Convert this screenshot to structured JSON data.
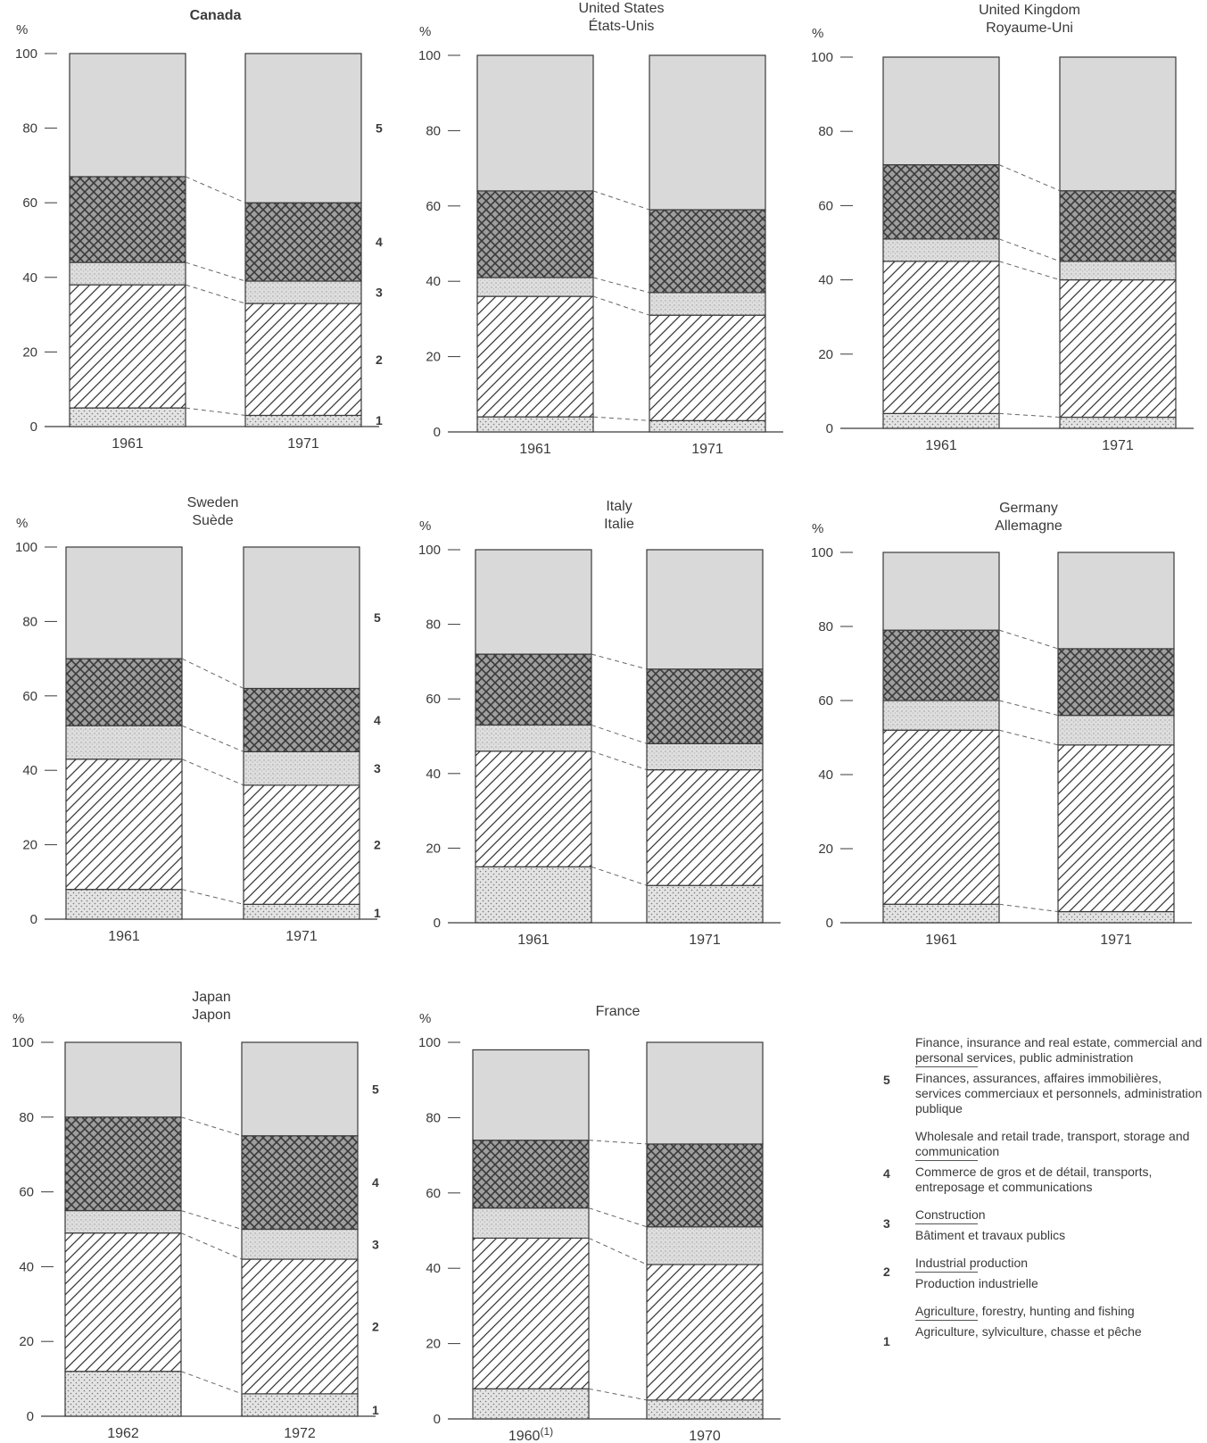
{
  "chart_data": [
    {
      "type": "bar",
      "title": "Canada",
      "title_bold": true,
      "ylabel": "%",
      "ylim": [
        0,
        100
      ],
      "categories": [
        "1961",
        "1971"
      ],
      "show_category_labels": true,
      "series": [
        {
          "name": "1",
          "values": [
            5,
            3
          ]
        },
        {
          "name": "2",
          "values": [
            33,
            30
          ]
        },
        {
          "name": "3",
          "values": [
            6,
            6
          ]
        },
        {
          "name": "4",
          "values": [
            23,
            21
          ]
        },
        {
          "name": "5",
          "values": [
            33,
            40
          ]
        }
      ]
    },
    {
      "type": "bar",
      "title": "United States",
      "subtitle": "États-Unis",
      "ylabel": "%",
      "ylim": [
        0,
        100
      ],
      "categories": [
        "1961",
        "1971"
      ],
      "series": [
        {
          "name": "1",
          "values": [
            4,
            3
          ]
        },
        {
          "name": "2",
          "values": [
            32,
            28
          ]
        },
        {
          "name": "3",
          "values": [
            5,
            6
          ]
        },
        {
          "name": "4",
          "values": [
            23,
            22
          ]
        },
        {
          "name": "5",
          "values": [
            36,
            41
          ]
        }
      ]
    },
    {
      "type": "bar",
      "title": "United Kingdom",
      "subtitle": "Royaume-Uni",
      "ylabel": "%",
      "ylim": [
        0,
        100
      ],
      "categories": [
        "1961",
        "1971"
      ],
      "series": [
        {
          "name": "1",
          "values": [
            4,
            3
          ]
        },
        {
          "name": "2",
          "values": [
            41,
            37
          ]
        },
        {
          "name": "3",
          "values": [
            6,
            5
          ]
        },
        {
          "name": "4",
          "values": [
            20,
            19
          ]
        },
        {
          "name": "5",
          "values": [
            29,
            36
          ]
        }
      ]
    },
    {
      "type": "bar",
      "title": "Sweden",
      "subtitle": "Suède",
      "ylabel": "%",
      "ylim": [
        0,
        100
      ],
      "categories": [
        "1961",
        "1971"
      ],
      "series": [
        {
          "name": "1",
          "values": [
            8,
            4
          ]
        },
        {
          "name": "2",
          "values": [
            35,
            32
          ]
        },
        {
          "name": "3",
          "values": [
            9,
            9
          ]
        },
        {
          "name": "4",
          "values": [
            18,
            17
          ]
        },
        {
          "name": "5",
          "values": [
            30,
            38
          ]
        }
      ]
    },
    {
      "type": "bar",
      "title": "Italy",
      "subtitle": "Italie",
      "ylabel": "%",
      "ylim": [
        0,
        100
      ],
      "categories": [
        "1961",
        "1971"
      ],
      "series": [
        {
          "name": "1",
          "values": [
            15,
            10
          ]
        },
        {
          "name": "2",
          "values": [
            31,
            31
          ]
        },
        {
          "name": "3",
          "values": [
            7,
            7
          ]
        },
        {
          "name": "4",
          "values": [
            19,
            20
          ]
        },
        {
          "name": "5",
          "values": [
            28,
            32
          ]
        }
      ]
    },
    {
      "type": "bar",
      "title": "Germany",
      "subtitle": "Allemagne",
      "ylabel": "%",
      "ylim": [
        0,
        100
      ],
      "categories": [
        "1961",
        "1971"
      ],
      "series": [
        {
          "name": "1",
          "values": [
            5,
            3
          ]
        },
        {
          "name": "2",
          "values": [
            47,
            45
          ]
        },
        {
          "name": "3",
          "values": [
            8,
            8
          ]
        },
        {
          "name": "4",
          "values": [
            19,
            18
          ]
        },
        {
          "name": "5",
          "values": [
            21,
            26
          ]
        }
      ]
    },
    {
      "type": "bar",
      "title": "Japan",
      "subtitle": "Japon",
      "ylabel": "%",
      "ylim": [
        0,
        100
      ],
      "categories": [
        "1962",
        "1972"
      ],
      "series": [
        {
          "name": "1",
          "values": [
            12,
            6
          ]
        },
        {
          "name": "2",
          "values": [
            37,
            36
          ]
        },
        {
          "name": "3",
          "values": [
            6,
            8
          ]
        },
        {
          "name": "4",
          "values": [
            25,
            25
          ]
        },
        {
          "name": "5",
          "values": [
            20,
            25
          ]
        }
      ]
    },
    {
      "type": "bar",
      "title": "France",
      "ylabel": "%",
      "ylim": [
        0,
        100
      ],
      "categories": [
        "1960",
        "1970"
      ],
      "category_notes": [
        "(1)",
        ""
      ],
      "series": [
        {
          "name": "1",
          "values": [
            8,
            5
          ]
        },
        {
          "name": "2",
          "values": [
            40,
            36
          ]
        },
        {
          "name": "3",
          "values": [
            8,
            10
          ]
        },
        {
          "name": "4",
          "values": [
            18,
            22
          ]
        },
        {
          "name": "5",
          "values": [
            24,
            27
          ]
        }
      ]
    }
  ],
  "panel_number_labels": [
    "1",
    "2",
    "3",
    "4",
    "5"
  ],
  "yticks": [
    "0",
    "20",
    "40",
    "60",
    "80",
    "100"
  ],
  "legend": [
    {
      "num": "5",
      "en": "Finance, insurance and real estate, commercial and personal services, public administration",
      "fr": "Finances, assurances, affaires immobilières, services commerciaux et personnels, administration publique"
    },
    {
      "num": "4",
      "en": "Wholesale and retail trade, transport, storage and communication",
      "fr": "Commerce de gros et de détail, transports, entreposage et communications"
    },
    {
      "num": "3",
      "en": "Construction",
      "fr": "Bâtiment et travaux publics"
    },
    {
      "num": "2",
      "en": "Industrial production",
      "fr": "Production industrielle"
    },
    {
      "num": "1",
      "en": "Agriculture, forestry, hunting and fishing",
      "fr": "Agriculture, sylviculture, chasse et pêche"
    }
  ],
  "colors": {
    "ink": "#3a3a3a",
    "bar_fill": "#d9d9d9",
    "pattern_light": "#e6e6e6"
  }
}
